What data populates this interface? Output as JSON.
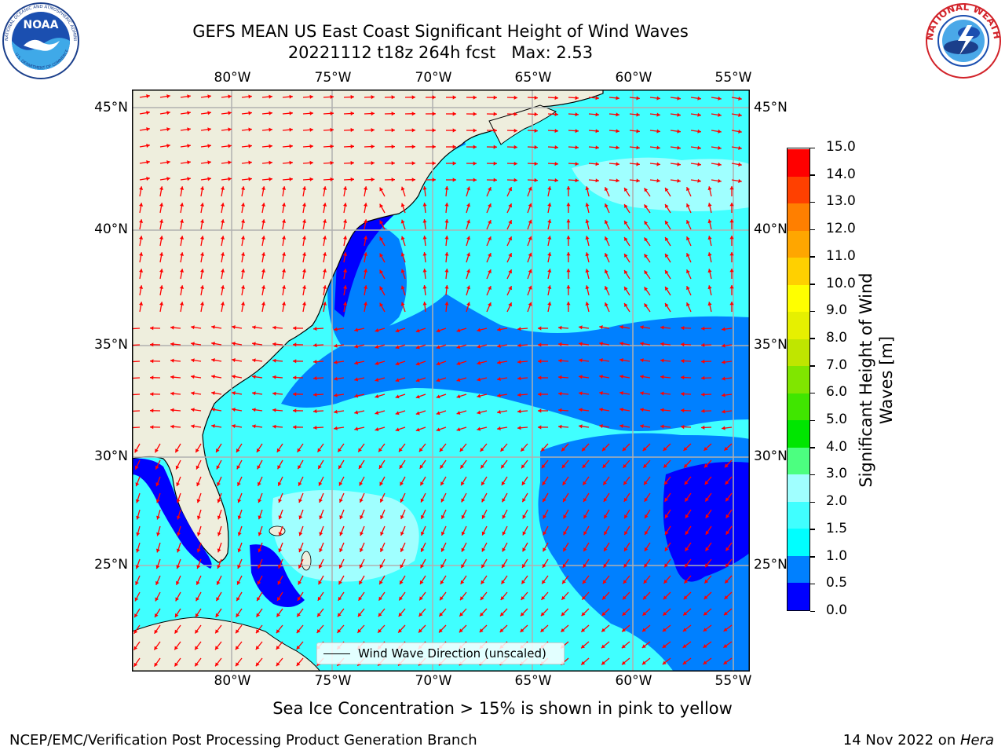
{
  "title": {
    "line1": "GEFS MEAN US East Coast Significant Height of Wind Waves",
    "line2": "20221112 t18z 264h fcst   Max: 2.53"
  },
  "logos": {
    "left": "noaa-logo",
    "left_text": "NOAA",
    "left_ring": "NATIONAL OCEANIC AND ATMOSPHERIC ADMINISTRATION",
    "left_ring_bottom": "U.S. DEPARTMENT OF COMMERCE",
    "right": "nws-logo",
    "right_ring": "NATIONAL WEATHER SERVICE"
  },
  "map": {
    "lon_labels": [
      "80°W",
      "75°W",
      "70°W",
      "65°W",
      "60°W",
      "55°W"
    ],
    "lat_labels": [
      "45°N",
      "40°N",
      "35°N",
      "30°N",
      "25°N"
    ],
    "projection_region": "US East Coast / Western North Atlantic",
    "lon_range": [
      -85,
      -54.5
    ],
    "lat_range": [
      20.5,
      46
    ],
    "colors": {
      "land": "#eeeedd",
      "coastline": "#000000",
      "grid": "#b0b0b0",
      "arrows": "#ff0000"
    },
    "arrow_icon": "arrow-icon"
  },
  "legend": {
    "label": "Wind Wave Direction (unscaled)"
  },
  "colorbar": {
    "label": "Significant Height of Wind Waves [m]",
    "label_line1": "Significant Height of Wind",
    "label_line2": "Waves [m]",
    "levels": [
      "0.0",
      "0.5",
      "1.0",
      "1.5",
      "2.0",
      "3.0",
      "4.0",
      "5.0",
      "6.0",
      "7.0",
      "8.0",
      "9.0",
      "10.0",
      "11.0",
      "12.0",
      "13.0",
      "14.0",
      "15.0"
    ],
    "colors": [
      "#0000ff",
      "#0080ff",
      "#00ffff",
      "#40ffff",
      "#a0ffff",
      "#4cff80",
      "#00e600",
      "#40e600",
      "#80e600",
      "#bfe600",
      "#e6f000",
      "#ffff00",
      "#ffd000",
      "#ffa600",
      "#ff7f00",
      "#ff4000",
      "#ff0000"
    ]
  },
  "caption": "Sea Ice Concentration > 15% is shown in pink to yellow",
  "footer": {
    "left": "NCEP/EMC/Verification Post Processing Product Generation Branch",
    "date": "14 Nov 2022 on ",
    "machine": "Hera"
  }
}
